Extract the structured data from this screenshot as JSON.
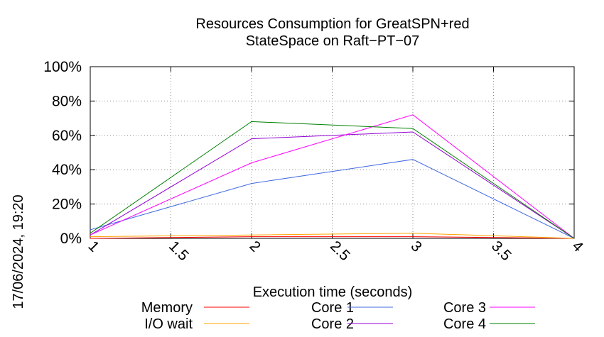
{
  "chart_data": {
    "type": "line",
    "title_line1": "Resources Consumption for GreatSPN+red",
    "title_line2": "StateSpace on Raft−PT−07",
    "xlabel": "Execution time (seconds)",
    "ylabel": "",
    "side_label": "17/06/2024, 19:20",
    "xlim": [
      1,
      4
    ],
    "ylim": [
      0,
      100
    ],
    "x_ticks": [
      1,
      1.5,
      2,
      2.5,
      3,
      3.5,
      4
    ],
    "x_tick_labels": [
      "1",
      "1.5",
      "2",
      "2.5",
      "3",
      "3.5",
      "4"
    ],
    "y_ticks": [
      0,
      20,
      40,
      60,
      80,
      100
    ],
    "y_tick_labels": [
      "0%",
      "20%",
      "40%",
      "60%",
      "80%",
      "100%"
    ],
    "grid": true,
    "legend_position": "bottom",
    "x": [
      1,
      2,
      3,
      4
    ],
    "series": [
      {
        "name": "Memory",
        "color": "#ff0000",
        "values": [
          0,
          1,
          1,
          0
        ]
      },
      {
        "name": "I/O wait",
        "color": "#ffa500",
        "values": [
          1,
          2,
          3,
          0
        ]
      },
      {
        "name": "Core 1",
        "color": "#4169e1",
        "values": [
          5,
          32,
          46,
          0
        ]
      },
      {
        "name": "Core 2",
        "color": "#9400d3",
        "values": [
          2,
          58,
          62,
          0
        ]
      },
      {
        "name": "Core 3",
        "color": "#ff00ff",
        "values": [
          2,
          44,
          72,
          0
        ]
      },
      {
        "name": "Core 4",
        "color": "#008000",
        "values": [
          3,
          68,
          64,
          0
        ]
      }
    ]
  }
}
